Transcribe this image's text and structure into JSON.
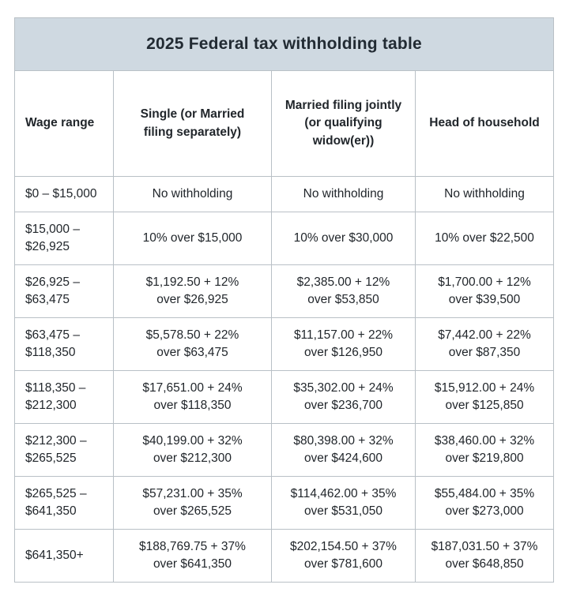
{
  "page": {
    "title": "2025 Federal tax withholding table"
  },
  "table": {
    "columns": [
      "Wage range",
      "Single (or Married\nfiling separately)",
      "Married filing jointly\n(or qualifying\nwidow(er))",
      "Head of household"
    ],
    "rows": [
      [
        "$0 – $15,000",
        "No withholding",
        "No withholding",
        "No withholding"
      ],
      [
        "$15,000 –\n$26,925",
        "10% over $15,000",
        "10% over $30,000",
        "10% over $22,500"
      ],
      [
        "$26,925 –\n$63,475",
        "$1,192.50 + 12%\nover $26,925",
        "$2,385.00 + 12%\nover $53,850",
        "$1,700.00 + 12%\nover $39,500"
      ],
      [
        "$63,475 –\n$118,350",
        "$5,578.50 + 22%\nover $63,475",
        "$11,157.00 + 22%\nover $126,950",
        "$7,442.00 + 22%\nover $87,350"
      ],
      [
        "$118,350 –\n$212,300",
        "$17,651.00 + 24%\nover $118,350",
        "$35,302.00 + 24%\nover $236,700",
        "$15,912.00 + 24%\nover $125,850"
      ],
      [
        "$212,300 –\n$265,525",
        "$40,199.00 + 32%\nover $212,300",
        "$80,398.00 + 32%\nover $424,600",
        "$38,460.00 + 32%\nover $219,800"
      ],
      [
        "$265,525 –\n$641,350",
        "$57,231.00 + 35%\nover $265,525",
        "$114,462.00 + 35%\nover $531,050",
        "$55,484.00 + 35%\nover $273,000"
      ],
      [
        "$641,350+",
        "$188,769.75 + 37%\nover $641,350",
        "$202,154.50 + 37%\nover $781,600",
        "$187,031.50 + 37%\nover $648,850"
      ]
    ]
  },
  "colors": {
    "title_bg": "#cfd9e1",
    "inner_border": "#b9c0c6",
    "outer_border": "#a9b0b6",
    "text": "#21262b",
    "background": "#ffffff"
  }
}
